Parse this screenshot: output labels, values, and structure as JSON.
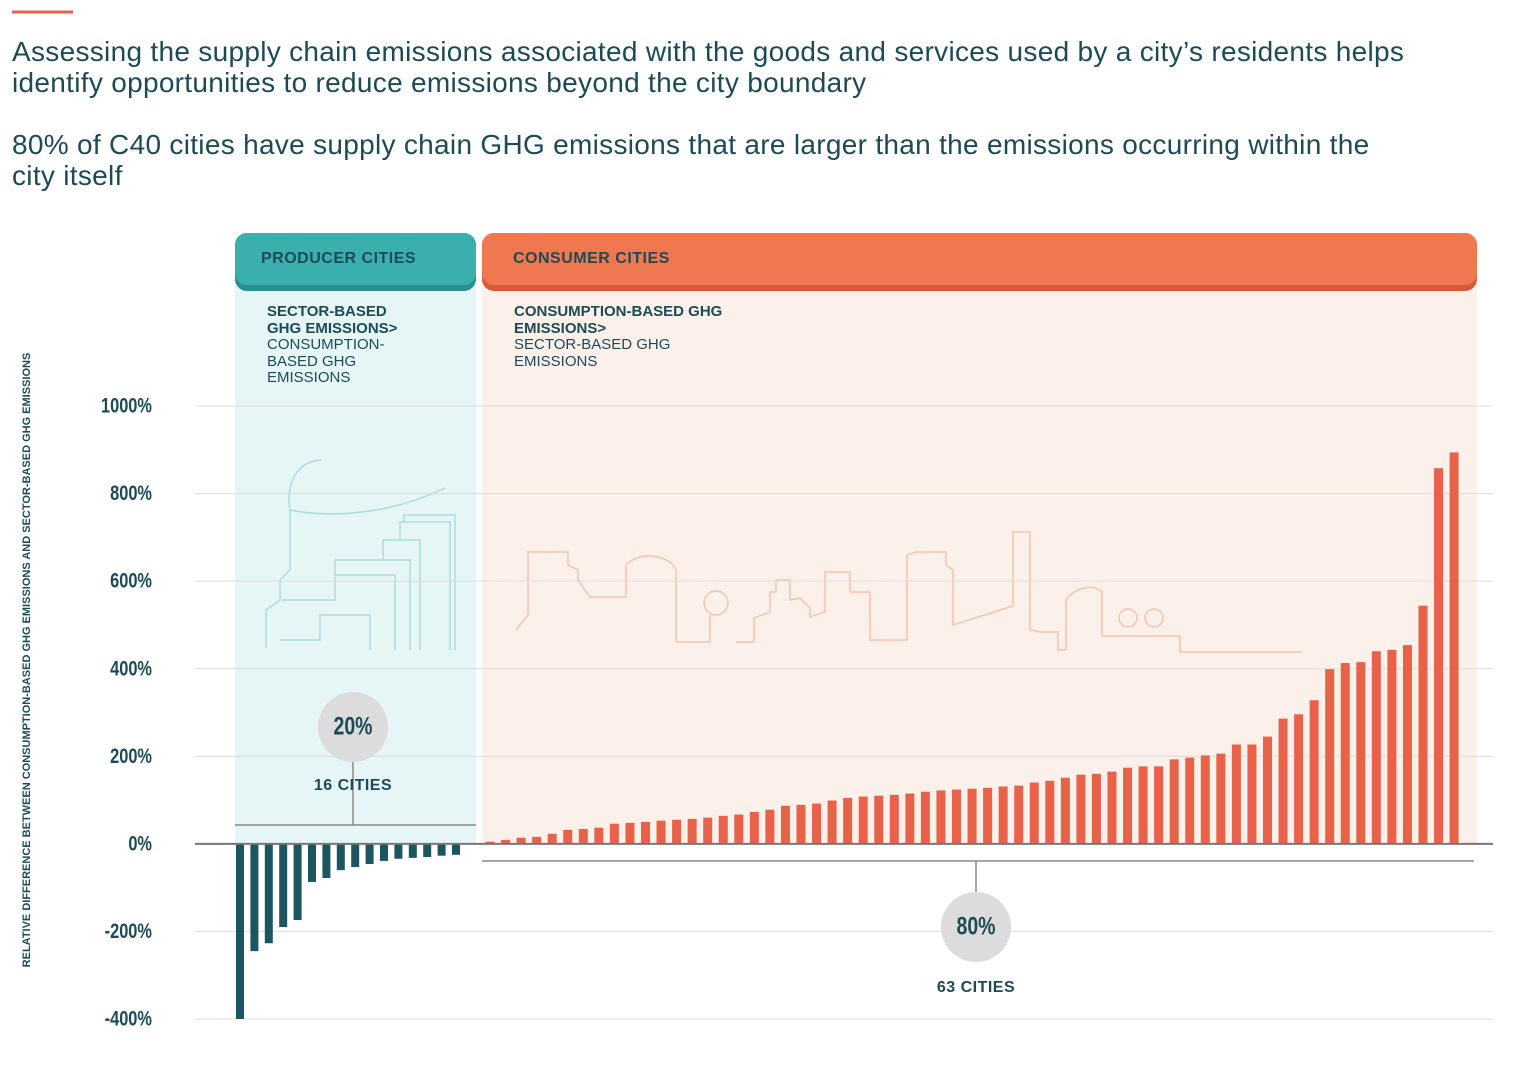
{
  "chart_data": {
    "type": "bar",
    "title": "Assessing the supply chain emissions associated with the goods and services used by a city’s residents helps identify opportunities to reduce emissions beyond the city boundary",
    "subtitle": "80% of C40 cities have supply chain GHG emissions that are larger than the emissions occurring within the city itself",
    "y_label": "RELATIVE DIFFERENCE BETWEEN CONSUMPTION-BASED GHG EMISSIONS AND SECTOR-BASED GHG EMISSIONS",
    "ylim": [
      -400,
      1000
    ],
    "yticks": [
      {
        "value": -400,
        "label": "-400%"
      },
      {
        "value": -200,
        "label": "-200%"
      },
      {
        "value": 0,
        "label": "0%"
      },
      {
        "value": 200,
        "label": "200%"
      },
      {
        "value": 400,
        "label": "400%"
      },
      {
        "value": 600,
        "label": "600%"
      },
      {
        "value": 800,
        "label": "800%"
      },
      {
        "value": 1000,
        "label": "1000%"
      }
    ],
    "grid": true,
    "series": [
      {
        "name": "PRODUCER CITIES",
        "color": "#1d5560",
        "header_color": "#3aafad",
        "panel_color": "#e6f5f5",
        "note_bold": "SECTOR-BASED GHG EMISSIONS>",
        "note": "CONSUMPTION-BASED GHG EMISSIONS",
        "share": "20%",
        "count": "16 CITIES",
        "values": [
          -400,
          -245,
          -227,
          -190,
          -174,
          -87,
          -78,
          -60,
          -53,
          -46,
          -39,
          -34,
          -32,
          -30,
          -27,
          -25
        ]
      },
      {
        "name": "CONSUMER CITIES",
        "color": "#e8624a",
        "header_color": "#f07850",
        "panel_color": "#fbf0ea",
        "note_bold": "CONSUMPTION-BASED GHG EMISSIONS>",
        "note": "SECTOR-BASED GHG EMISSIONS",
        "share": "80%",
        "count": "63 CITIES",
        "values": [
          5,
          9,
          14,
          16,
          23,
          32,
          34,
          37,
          46,
          48,
          50,
          53,
          55,
          57,
          60,
          64,
          67,
          73,
          78,
          87,
          89,
          92,
          99,
          105,
          108,
          110,
          112,
          115,
          119,
          122,
          124,
          126,
          128,
          131,
          133,
          140,
          144,
          151,
          158,
          160,
          165,
          174,
          177,
          177,
          193,
          197,
          202,
          206,
          227,
          227,
          245,
          286,
          296,
          328,
          399,
          413,
          415,
          440,
          443,
          454,
          544,
          858,
          894
        ]
      }
    ]
  }
}
